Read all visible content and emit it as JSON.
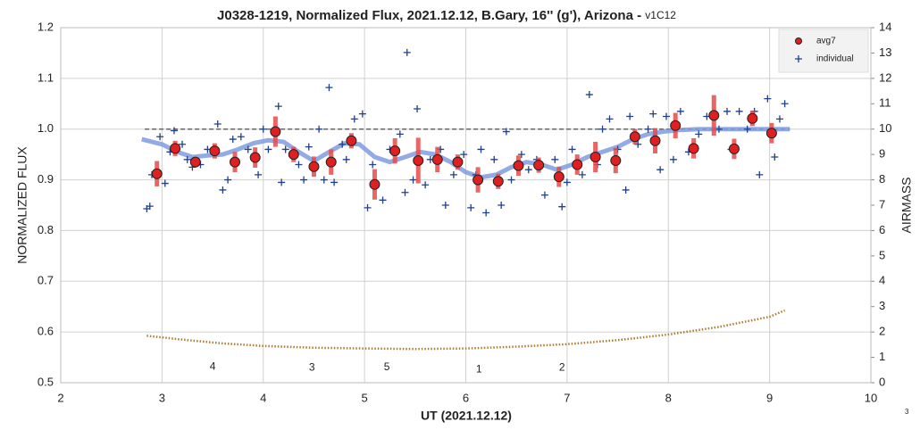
{
  "chart_data": {
    "type": "scatter",
    "title": "J0328-1219, Normalized Flux, 2021.12.12, B.Gary, 16'' (g'), Arizona - ",
    "subtitle": "v1C12",
    "x_label": "UT (2021.12.12)",
    "y_label": "NORMALIZED FLUX",
    "y2_label": "AIRMASS",
    "footnote": "3",
    "xlim": [
      2,
      10
    ],
    "xticks": [
      2,
      3,
      4,
      5,
      6,
      7,
      8,
      9,
      10
    ],
    "ylim": [
      0.5,
      1.2
    ],
    "yticks": [
      0.5,
      0.6,
      0.7,
      0.8,
      0.9,
      {
        "value": 1,
        "label": "1.0"
      },
      1.1,
      1.2
    ],
    "y2lim": [
      0,
      14
    ],
    "y2ticks": [
      0,
      1,
      2,
      3,
      4,
      5,
      6,
      7,
      8,
      9,
      10,
      11,
      12,
      13,
      14
    ],
    "grid": true,
    "legend": "top-right",
    "reference_line": 1,
    "series": [
      {
        "name": "avg7",
        "color": "#e02020",
        "marker": "circle",
        "x": [
          2.95,
          3.13,
          3.33,
          3.52,
          3.72,
          3.92,
          4.12,
          4.3,
          4.5,
          4.67,
          4.87,
          5.1,
          5.3,
          5.53,
          5.72,
          5.92,
          6.12,
          6.32,
          6.52,
          6.72,
          6.92,
          7.1,
          7.28,
          7.48,
          7.67,
          7.87,
          8.07,
          8.25,
          8.45,
          8.65,
          8.83,
          9.02
        ],
        "values": [
          0.912,
          0.962,
          0.935,
          0.957,
          0.935,
          0.944,
          0.995,
          0.95,
          0.926,
          0.935,
          0.977,
          0.891,
          0.957,
          0.938,
          0.94,
          0.935,
          0.9,
          0.897,
          0.928,
          0.929,
          0.906,
          0.93,
          0.945,
          0.938,
          0.985,
          0.977,
          1.007,
          0.962,
          1.027,
          0.961,
          1.021,
          0.992
        ],
        "errors": [
          0.025,
          0.015,
          0.01,
          0.015,
          0.02,
          0.02,
          0.03,
          0.015,
          0.02,
          0.025,
          0.015,
          0.03,
          0.025,
          0.045,
          0.025,
          0.015,
          0.025,
          0.015,
          0.02,
          0.015,
          0.02,
          0.02,
          0.03,
          0.025,
          0.015,
          0.025,
          0.025,
          0.02,
          0.04,
          0.02,
          0.015,
          0.02
        ]
      },
      {
        "name": "individual",
        "color": "#1f3f8f",
        "marker": "plus",
        "x": [
          2.85,
          2.88,
          2.9,
          2.98,
          3.03,
          3.08,
          3.12,
          3.2,
          3.25,
          3.3,
          3.38,
          3.45,
          3.55,
          3.6,
          3.65,
          3.7,
          3.78,
          3.85,
          3.95,
          4.0,
          4.05,
          4.15,
          4.18,
          4.22,
          4.35,
          4.4,
          4.45,
          4.55,
          4.6,
          4.65,
          4.7,
          4.78,
          4.82,
          4.9,
          4.98,
          5.03,
          5.08,
          5.18,
          5.25,
          5.35,
          5.4,
          5.42,
          5.48,
          5.52,
          5.6,
          5.65,
          5.75,
          5.8,
          5.88,
          5.98,
          6.05,
          6.1,
          6.15,
          6.2,
          6.28,
          6.35,
          6.4,
          6.45,
          6.55,
          6.62,
          6.7,
          6.78,
          6.88,
          6.95,
          7.0,
          7.05,
          7.15,
          7.22,
          7.3,
          7.35,
          7.42,
          7.5,
          7.58,
          7.62,
          7.7,
          7.8,
          7.85,
          7.92,
          7.98,
          8.05,
          8.12,
          8.2,
          8.3,
          8.38,
          8.5,
          8.58,
          8.62,
          8.7,
          8.78,
          8.85,
          8.9,
          8.98,
          9.05,
          9.1,
          9.15
        ],
        "values": [
          0.843,
          0.848,
          0.91,
          0.985,
          0.893,
          0.955,
          0.997,
          0.97,
          0.94,
          0.925,
          0.93,
          0.96,
          1.01,
          0.88,
          0.9,
          0.98,
          0.985,
          0.96,
          0.91,
          1.0,
          0.96,
          1.045,
          0.895,
          0.96,
          0.93,
          0.9,
          0.965,
          1.0,
          0.9,
          1.082,
          0.895,
          0.97,
          0.94,
          1.02,
          1.03,
          0.845,
          0.93,
          0.86,
          0.96,
          0.99,
          0.875,
          1.151,
          0.9,
          1.04,
          0.89,
          0.94,
          0.96,
          0.85,
          0.91,
          0.95,
          0.845,
          0.91,
          0.96,
          0.835,
          0.94,
          0.85,
          0.995,
          0.9,
          0.95,
          0.92,
          0.94,
          0.87,
          0.94,
          0.847,
          0.895,
          0.96,
          0.91,
          1.068,
          0.93,
          1.0,
          1.02,
          0.96,
          0.88,
          1.025,
          0.97,
          1.0,
          1.03,
          0.92,
          1.025,
          0.94,
          1.035,
          0.955,
          0.99,
          1.025,
          1.0,
          1.035,
          0.96,
          1.035,
          1.0,
          1.035,
          0.91,
          1.06,
          0.945,
          1.02,
          1.05
        ]
      }
    ],
    "model": {
      "color": "#7f9be0",
      "x": [
        2.8,
        3.0,
        3.15,
        3.3,
        3.45,
        3.6,
        3.75,
        3.9,
        4.05,
        4.2,
        4.35,
        4.5,
        4.65,
        4.8,
        4.95,
        5.1,
        5.25,
        5.4,
        5.55,
        5.7,
        5.85,
        6.0,
        6.15,
        6.3,
        6.45,
        6.6,
        6.75,
        6.9,
        7.05,
        7.2,
        7.35,
        7.5,
        7.65,
        7.8,
        7.95,
        8.1,
        8.3,
        8.6,
        9.2
      ],
      "values": [
        0.98,
        0.97,
        0.955,
        0.945,
        0.948,
        0.95,
        0.96,
        0.972,
        0.978,
        0.975,
        0.955,
        0.937,
        0.955,
        0.972,
        0.97,
        0.945,
        0.935,
        0.945,
        0.955,
        0.95,
        0.935,
        0.915,
        0.905,
        0.91,
        0.925,
        0.935,
        0.93,
        0.92,
        0.93,
        0.945,
        0.955,
        0.965,
        0.98,
        0.99,
        0.995,
        0.998,
        1.0,
        1.0,
        1.0
      ]
    },
    "airmass": {
      "color": "#b07a30",
      "axis": "y2",
      "x": [
        2.85,
        3.2,
        3.6,
        4.0,
        4.5,
        5.0,
        5.5,
        6.0,
        6.5,
        7.0,
        7.5,
        8.0,
        8.5,
        9.0,
        9.15
      ],
      "values": [
        1.85,
        1.7,
        1.55,
        1.45,
        1.38,
        1.35,
        1.33,
        1.35,
        1.42,
        1.52,
        1.68,
        1.9,
        2.2,
        2.6,
        2.85
      ]
    },
    "annotations": [
      {
        "text": "4",
        "x": 3.5,
        "y": 0.531
      },
      {
        "text": "3",
        "x": 4.48,
        "y": 0.529
      },
      {
        "text": "5",
        "x": 5.22,
        "y": 0.53
      },
      {
        "text": "1",
        "x": 6.13,
        "y": 0.526
      },
      {
        "text": "2",
        "x": 6.95,
        "y": 0.529
      }
    ]
  }
}
